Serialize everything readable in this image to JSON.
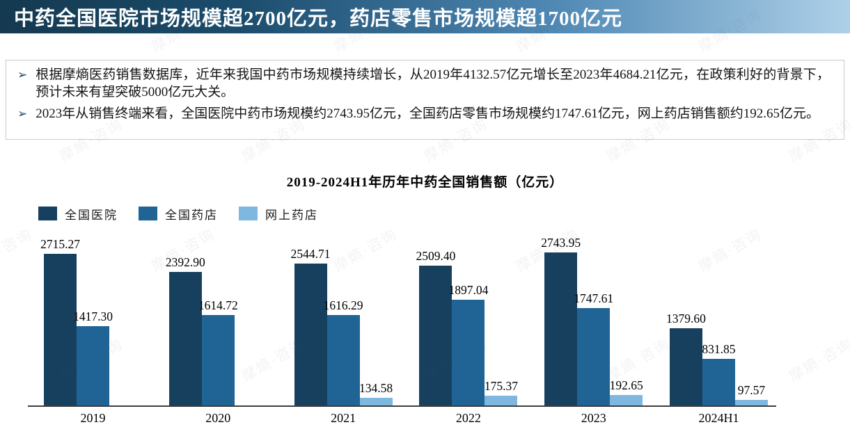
{
  "header": {
    "title": "中药全国医院市场规模超2700亿元，药店零售市场规模超1700亿元"
  },
  "bullets": [
    {
      "marker": "➢",
      "text": "根据摩熵医药销售数据库，近年来我国中药市场规模持续增长，从2019年4132.57亿元增长至2023年4684.21亿元，在政策利好的背景下，预计未来有望突破5000亿元大关。"
    },
    {
      "marker": "➢",
      "text": "2023年从销售终端来看，全国医院中药市场规模约2743.95亿元，全国药店零售市场规模约1747.61亿元，网上药店销售额约192.65亿元。"
    }
  ],
  "watermark": {
    "text": "摩熵·咨询"
  },
  "colors": {
    "header_gradient_start": "#143950",
    "header_gradient_end": "#aed0e8",
    "axis": "#3d3d3d"
  },
  "chart_data": {
    "type": "bar",
    "title": "2019-2024H1年历年中药全国销售额（亿元）",
    "unit": "亿元",
    "categories": [
      "2019",
      "2020",
      "2021",
      "2022",
      "2023",
      "2024H1"
    ],
    "series": [
      {
        "name": "全国医院",
        "color": "#17405F",
        "values": [
          2715.27,
          2392.9,
          2544.71,
          2509.4,
          2743.95,
          1379.6
        ]
      },
      {
        "name": "全国药店",
        "color": "#206496",
        "values": [
          1417.3,
          1614.72,
          1616.29,
          1897.04,
          1747.61,
          831.85
        ]
      },
      {
        "name": "网上药店",
        "color": "#7EB8E0",
        "values": [
          null,
          null,
          134.58,
          175.37,
          192.65,
          97.57
        ]
      }
    ],
    "value_labels": true,
    "grid": false,
    "legend_position": "top-left",
    "ylim": [
      0,
      3000
    ]
  }
}
